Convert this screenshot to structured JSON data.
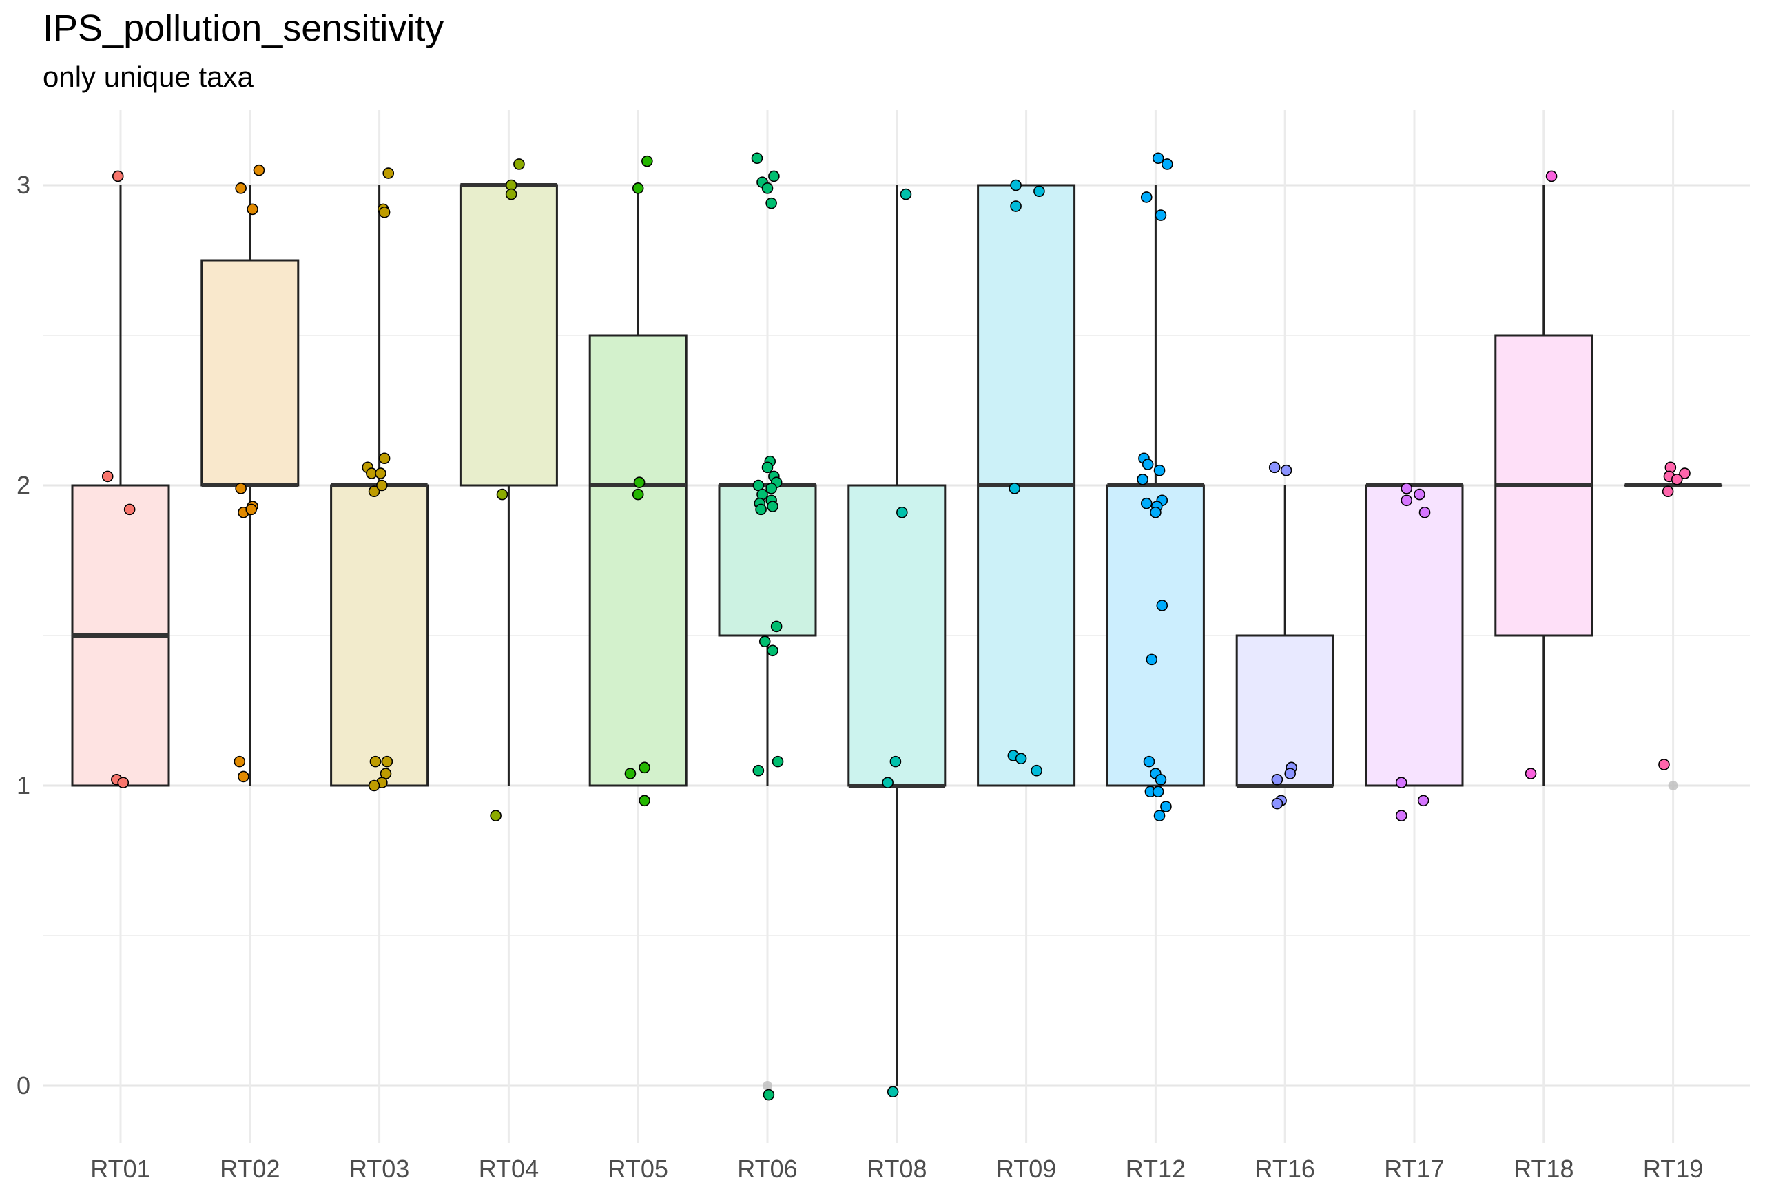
{
  "chart_data": {
    "type": "box",
    "title": "IPS_pollution_sensitivity",
    "subtitle": "only unique taxa",
    "xlabel": "",
    "ylabel": "",
    "ylim": [
      -0.15,
      3.25
    ],
    "y_ticks": [
      "0",
      "1",
      "2",
      "3"
    ],
    "grid": true,
    "legend": "none",
    "categories": [
      "RT01",
      "RT02",
      "RT03",
      "RT04",
      "RT05",
      "RT06",
      "RT08",
      "RT09",
      "RT12",
      "RT16",
      "RT17",
      "RT18",
      "RT19"
    ],
    "series": [
      {
        "category": "RT01",
        "color": "#F8766D",
        "fill": "#FEE3E2",
        "box": {
          "whisker_low": 1,
          "q1": 1,
          "median": 1.5,
          "q3": 2,
          "whisker_high": 3
        },
        "outliers": [],
        "points": [
          [
            -0.02,
            3.03
          ],
          [
            -0.1,
            2.03
          ],
          [
            0.07,
            1.92
          ],
          [
            -0.03,
            1.02
          ],
          [
            0.02,
            1.01
          ]
        ]
      },
      {
        "category": "RT02",
        "color": "#E18A00",
        "fill": "#F9E8CC",
        "box": {
          "whisker_low": 1,
          "q1": 2,
          "median": 2,
          "q3": 2.75,
          "whisker_high": 3
        },
        "outliers": [],
        "points": [
          [
            0.07,
            3.05
          ],
          [
            -0.07,
            2.99
          ],
          [
            0.02,
            2.92
          ],
          [
            -0.07,
            1.99
          ],
          [
            0.02,
            1.93
          ],
          [
            -0.05,
            1.91
          ],
          [
            -0.08,
            1.08
          ],
          [
            -0.05,
            1.03
          ],
          [
            0.01,
            1.92
          ]
        ]
      },
      {
        "category": "RT03",
        "color": "#BE9C00",
        "fill": "#F2EBCC",
        "box": {
          "whisker_low": 1,
          "q1": 1,
          "median": 2,
          "q3": 2,
          "whisker_high": 3
        },
        "outliers": [],
        "points": [
          [
            0.07,
            3.04
          ],
          [
            0.03,
            2.92
          ],
          [
            0.04,
            2.91
          ],
          [
            0.04,
            2.09
          ],
          [
            -0.09,
            2.06
          ],
          [
            -0.06,
            2.04
          ],
          [
            0.01,
            2.04
          ],
          [
            -0.04,
            1.98
          ],
          [
            0.02,
            2.0
          ],
          [
            -0.03,
            1.08
          ],
          [
            0.06,
            1.08
          ],
          [
            0.05,
            1.04
          ],
          [
            0.02,
            1.01
          ],
          [
            -0.04,
            1.0
          ]
        ]
      },
      {
        "category": "RT04",
        "color": "#8CAB00",
        "fill": "#E8EECC",
        "box": {
          "whisker_low": 1,
          "q1": 2,
          "median": 3,
          "q3": 3,
          "whisker_high": 3
        },
        "outliers": [],
        "points": [
          [
            0.08,
            3.07
          ],
          [
            0.02,
            3.0
          ],
          [
            0.02,
            2.97
          ],
          [
            -0.05,
            1.97
          ],
          [
            -0.1,
            0.9
          ]
        ]
      },
      {
        "category": "RT05",
        "color": "#24B700",
        "fill": "#D3F1CC",
        "box": {
          "whisker_low": 1,
          "q1": 1,
          "median": 2,
          "q3": 2.5,
          "whisker_high": 3
        },
        "outliers": [],
        "points": [
          [
            0.07,
            3.08
          ],
          [
            0.0,
            2.99
          ],
          [
            0.01,
            2.01
          ],
          [
            0.0,
            1.97
          ],
          [
            0.05,
            1.06
          ],
          [
            -0.06,
            1.04
          ],
          [
            0.05,
            0.95
          ]
        ]
      },
      {
        "category": "RT06",
        "color": "#00BE70",
        "fill": "#CCF2E2",
        "box": {
          "whisker_low": 1,
          "q1": 1.5,
          "median": 2,
          "q3": 2,
          "whisker_high": 2
        },
        "outliers": [
          0,
          3
        ],
        "points": [
          [
            -0.08,
            3.09
          ],
          [
            -0.04,
            3.01
          ],
          [
            0.05,
            3.03
          ],
          [
            0.0,
            2.99
          ],
          [
            0.03,
            2.94
          ],
          [
            0.02,
            2.08
          ],
          [
            0.0,
            2.06
          ],
          [
            -0.07,
            2.0
          ],
          [
            0.05,
            2.03
          ],
          [
            0.07,
            2.01
          ],
          [
            0.03,
            1.99
          ],
          [
            -0.04,
            1.97
          ],
          [
            0.03,
            1.95
          ],
          [
            -0.06,
            1.94
          ],
          [
            -0.05,
            1.92
          ],
          [
            0.04,
            1.93
          ],
          [
            0.07,
            1.53
          ],
          [
            -0.02,
            1.48
          ],
          [
            0.04,
            1.45
          ],
          [
            0.08,
            1.08
          ],
          [
            -0.07,
            1.05
          ],
          [
            0.01,
            -0.03
          ]
        ]
      },
      {
        "category": "RT08",
        "color": "#00C1AB",
        "fill": "#CCF3EE",
        "box": {
          "whisker_low": 0,
          "q1": 1,
          "median": 1,
          "q3": 2,
          "whisker_high": 3
        },
        "outliers": [],
        "points": [
          [
            0.07,
            2.97
          ],
          [
            0.04,
            1.91
          ],
          [
            -0.01,
            1.08
          ],
          [
            -0.07,
            1.01
          ],
          [
            -0.03,
            -0.02
          ]
        ]
      },
      {
        "category": "RT09",
        "color": "#00BBDA",
        "fill": "#CCF1F8",
        "box": {
          "whisker_low": 1,
          "q1": 1,
          "median": 2,
          "q3": 3,
          "whisker_high": 3
        },
        "outliers": [],
        "points": [
          [
            -0.08,
            3.0
          ],
          [
            -0.08,
            2.93
          ],
          [
            0.1,
            2.98
          ],
          [
            -0.09,
            1.99
          ],
          [
            -0.1,
            1.1
          ],
          [
            -0.04,
            1.09
          ],
          [
            0.08,
            1.05
          ]
        ]
      },
      {
        "category": "RT12",
        "color": "#00ACFC",
        "fill": "#CCEEFE",
        "box": {
          "whisker_low": 1,
          "q1": 1,
          "median": 2,
          "q3": 2,
          "whisker_high": 3
        },
        "outliers": [],
        "points": [
          [
            0.02,
            3.09
          ],
          [
            0.09,
            3.07
          ],
          [
            -0.07,
            2.96
          ],
          [
            0.04,
            2.9
          ],
          [
            -0.09,
            2.09
          ],
          [
            -0.06,
            2.07
          ],
          [
            0.03,
            2.05
          ],
          [
            -0.1,
            2.02
          ],
          [
            -0.07,
            1.94
          ],
          [
            0.05,
            1.95
          ],
          [
            0.01,
            1.93
          ],
          [
            0.0,
            1.91
          ],
          [
            0.05,
            1.6
          ],
          [
            -0.03,
            1.42
          ],
          [
            -0.05,
            1.08
          ],
          [
            0.0,
            1.04
          ],
          [
            0.04,
            1.02
          ],
          [
            -0.04,
            0.98
          ],
          [
            0.02,
            0.98
          ],
          [
            0.08,
            0.93
          ],
          [
            0.03,
            0.9
          ]
        ]
      },
      {
        "category": "RT16",
        "color": "#8B93FF",
        "fill": "#E8E9FF",
        "box": {
          "whisker_low": 1,
          "q1": 1,
          "median": 1,
          "q3": 1.5,
          "whisker_high": 2
        },
        "outliers": [],
        "points": [
          [
            -0.08,
            2.06
          ],
          [
            0.01,
            2.05
          ],
          [
            0.05,
            1.06
          ],
          [
            0.04,
            1.04
          ],
          [
            -0.06,
            1.02
          ],
          [
            -0.03,
            0.95
          ],
          [
            -0.06,
            0.94
          ]
        ]
      },
      {
        "category": "RT17",
        "color": "#D575FE",
        "fill": "#F7E3FF",
        "box": {
          "whisker_low": 1,
          "q1": 1,
          "median": 2,
          "q3": 2,
          "whisker_high": 2
        },
        "outliers": [],
        "points": [
          [
            -0.06,
            1.99
          ],
          [
            0.04,
            1.97
          ],
          [
            -0.06,
            1.95
          ],
          [
            0.08,
            1.91
          ],
          [
            -0.1,
            1.01
          ],
          [
            0.07,
            0.95
          ],
          [
            -0.1,
            0.9
          ]
        ]
      },
      {
        "category": "RT18",
        "color": "#F962DD",
        "fill": "#FEE0F8",
        "box": {
          "whisker_low": 1,
          "q1": 1.5,
          "median": 2,
          "q3": 2.5,
          "whisker_high": 3
        },
        "outliers": [],
        "points": [
          [
            0.06,
            3.03
          ],
          [
            -0.1,
            1.04
          ]
        ]
      },
      {
        "category": "RT19",
        "color": "#FF65AC",
        "fill": "#FFE0EE",
        "box": {
          "whisker_low": 2,
          "q1": 2,
          "median": 2,
          "q3": 2,
          "whisker_high": 2
        },
        "outliers": [
          1
        ],
        "points": [
          [
            -0.02,
            2.06
          ],
          [
            0.09,
            2.04
          ],
          [
            -0.03,
            2.03
          ],
          [
            0.03,
            2.02
          ],
          [
            -0.04,
            1.98
          ],
          [
            -0.07,
            1.07
          ]
        ]
      }
    ]
  }
}
